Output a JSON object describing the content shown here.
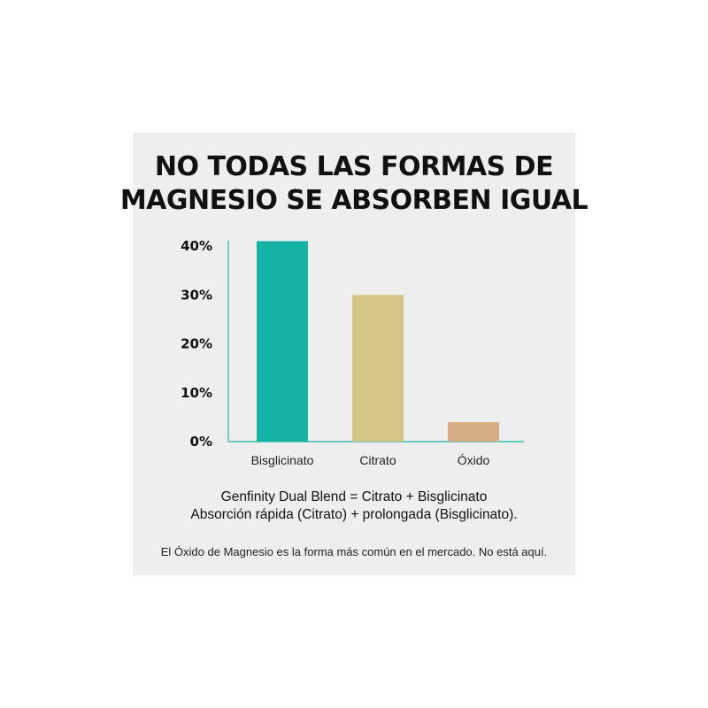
{
  "title": {
    "line1": "NO TODAS LAS FORMAS DE",
    "line2": "MAGNESIO SE ABSORBEN IGUAL"
  },
  "chart_data": {
    "type": "bar",
    "categories": [
      "Bisglicinato",
      "Citrato",
      "Óxido"
    ],
    "values": [
      41,
      30,
      4
    ],
    "colors": [
      "#14b3a6",
      "#d2c585",
      "#d4ad85"
    ],
    "ylim": [
      0,
      40
    ],
    "yticks": [
      "0%",
      "10%",
      "20%",
      "30%",
      "40%"
    ],
    "axis_color": "#14b3a6",
    "grid": false
  },
  "captions": {
    "line1": "Genfinity Dual Blend = Citrato + Bisglicinato",
    "line2": "Absorción rápida (Citrato) + prolongada (Bisglicinato).",
    "note": "El Óxido de Magnesio es la forma más común en el mercado. No está aquí."
  }
}
